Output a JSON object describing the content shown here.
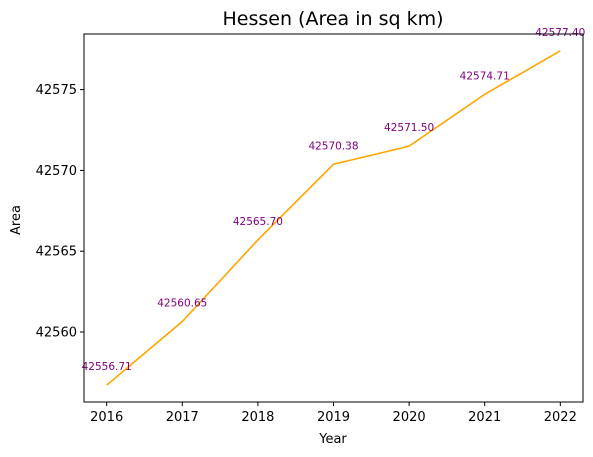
{
  "chart_data": {
    "type": "line",
    "title": "Hessen (Area in sq km)",
    "xlabel": "Year",
    "ylabel": "Area",
    "x": [
      2016,
      2017,
      2018,
      2019,
      2020,
      2021,
      2022
    ],
    "series": [
      {
        "values": [
          42556.71,
          42560.65,
          42565.7,
          42570.38,
          42571.5,
          42574.71,
          42577.4
        ],
        "data_labels": [
          "42556.71",
          "42560.65",
          "42565.70",
          "42570.38",
          "42571.50",
          "42574.71",
          "42577.40"
        ],
        "color": "#FFA500"
      }
    ],
    "xlim": [
      2015.7,
      2022.3
    ],
    "ylim": [
      42555.67,
      42578.44
    ],
    "x_ticks": [
      "2016",
      "2017",
      "2018",
      "2019",
      "2020",
      "2021",
      "2022"
    ],
    "y_ticks": [
      "42560",
      "42565",
      "42570",
      "42575"
    ],
    "label_color": "#800080",
    "grid": false,
    "legend": "none"
  }
}
